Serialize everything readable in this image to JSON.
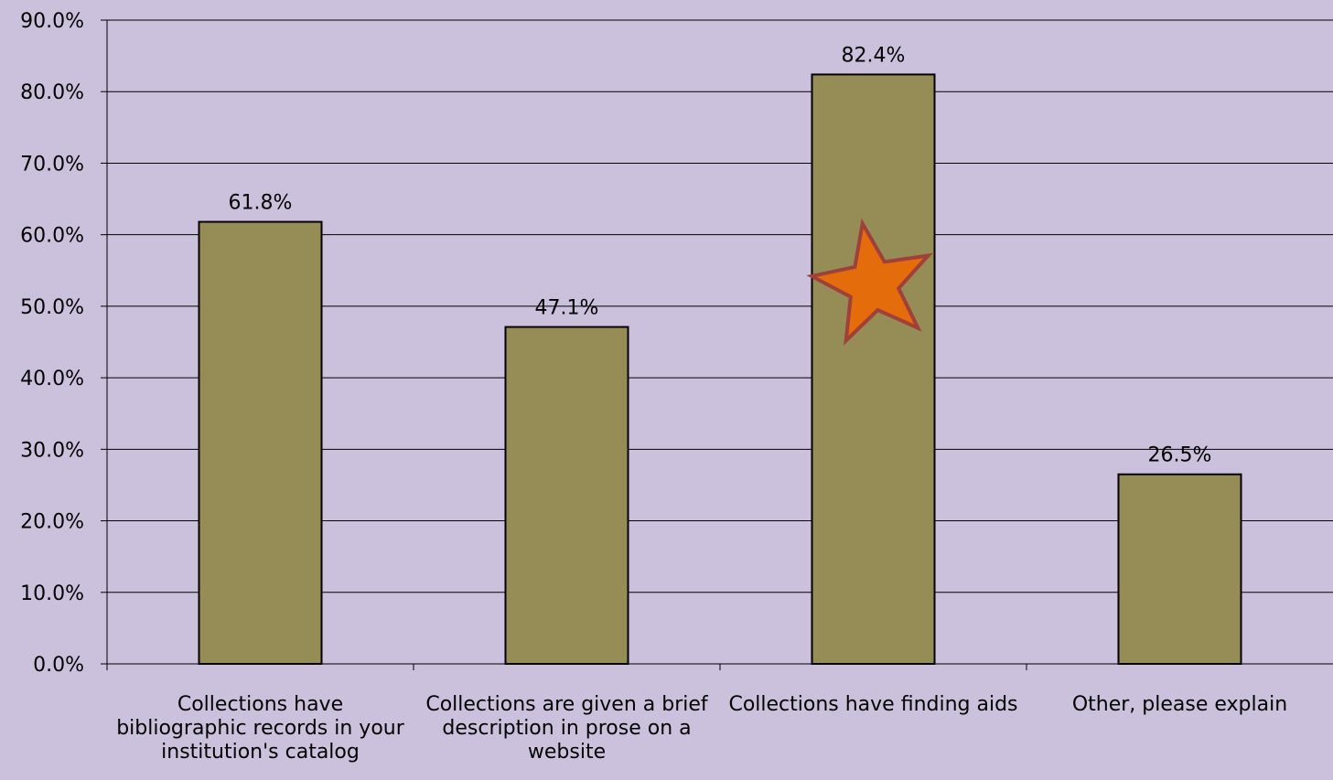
{
  "chart_data": {
    "type": "bar",
    "categories": [
      "Collections have bibliographic records in your institution's catalog",
      "Collections are given a brief description in prose on a website",
      "Collections have finding aids",
      "Other, please explain"
    ],
    "values": [
      61.8,
      47.1,
      82.4,
      26.5
    ],
    "data_labels": [
      "61.8%",
      "47.1%",
      "82.4%",
      "26.5%"
    ],
    "title": "",
    "xlabel": "",
    "ylabel": "",
    "ylim": [
      0,
      90
    ],
    "y_ticks": [
      0,
      10,
      20,
      30,
      40,
      50,
      60,
      70,
      80,
      90
    ],
    "y_tick_labels": [
      "0.0%",
      "10.0%",
      "20.0%",
      "30.0%",
      "40.0%",
      "50.0%",
      "60.0%",
      "70.0%",
      "80.0%",
      "90.0%"
    ],
    "grid": true,
    "legend": "none",
    "colors": {
      "background": "#ccc1dc",
      "bar_fill": "#968c55",
      "bar_stroke": "#000000",
      "gridline": "#000000",
      "star_fill": "#e46c0a",
      "star_stroke": "#a0403a"
    },
    "annotations": [
      {
        "type": "star-icon",
        "category_index": 2,
        "y_value": 53
      }
    ]
  }
}
